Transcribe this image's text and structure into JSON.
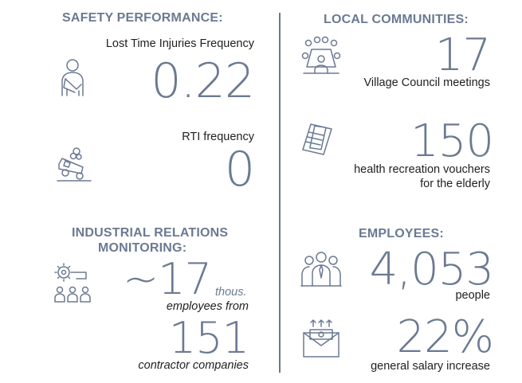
{
  "safety": {
    "heading": "SAFETY PERFORMANCE:",
    "ltif_label": "Lost Time Injuries Frequency",
    "ltif_value": "0.22",
    "rti_label": "RTI frequency",
    "rti_value": "0"
  },
  "industrial": {
    "heading_line1": "INDUSTRIAL RELATIONS",
    "heading_line2": "MONITORING:",
    "employees_value": "~17",
    "employees_unit": "thous.",
    "employees_label": "employees from",
    "contractors_value": "151",
    "contractors_label": "contractor companies"
  },
  "community": {
    "heading": "LOCAL COMMUNITIES:",
    "meetings_value": "17",
    "meetings_label": "Village Council meetings",
    "vouchers_value": "150",
    "vouchers_label_line1": "health recreation vouchers",
    "vouchers_label_line2": "for the elderly"
  },
  "employees": {
    "heading": "EMPLOYEES:",
    "count_value": "4,053",
    "count_label": "people",
    "salary_value": "22%",
    "salary_label": "general salary increase"
  },
  "icons": [
    "injured-worker-icon",
    "overturned-car-icon",
    "industrial-relations-icon",
    "meeting-table-icon",
    "vouchers-icon",
    "employees-group-icon",
    "salary-envelope-icon"
  ],
  "colors": {
    "accent": "#6b7a92",
    "text": "#1f1f1f",
    "background": "#ffffff"
  }
}
